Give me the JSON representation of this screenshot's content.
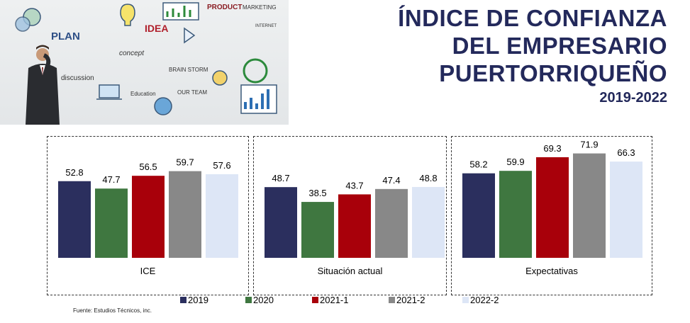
{
  "title": {
    "lines": [
      "ÍNDICE DE CONFIANZA",
      "DEL EMPRESARIO",
      "PUERTORRIQUEÑO"
    ],
    "period": "2019-2022"
  },
  "hero_image": {
    "words": [
      "PLAN",
      "IDEA",
      "PRODUCT",
      "MARKETING",
      "concept",
      "discussion",
      "BRAIN STORM",
      "Education",
      "OUR TEAM",
      "INTERNET"
    ]
  },
  "source": "Fuente: Estudios Técnicos, inc.",
  "chart_data": {
    "type": "bar",
    "series_names": [
      "2019",
      "2020",
      "2021-1",
      "2021-2",
      "2022-2"
    ],
    "colors": [
      "#2b2f5e",
      "#3f7740",
      "#a8000a",
      "#888888",
      "#dde6f6"
    ],
    "ylim": [
      0,
      80
    ],
    "panels": [
      {
        "label": "ICE",
        "values": [
          52.8,
          47.7,
          56.5,
          59.7,
          57.6
        ]
      },
      {
        "label": "Situación actual",
        "values": [
          48.7,
          38.5,
          43.7,
          47.4,
          48.8
        ]
      },
      {
        "label": "Expectativas",
        "values": [
          58.2,
          59.9,
          69.3,
          71.9,
          66.3
        ]
      }
    ]
  }
}
